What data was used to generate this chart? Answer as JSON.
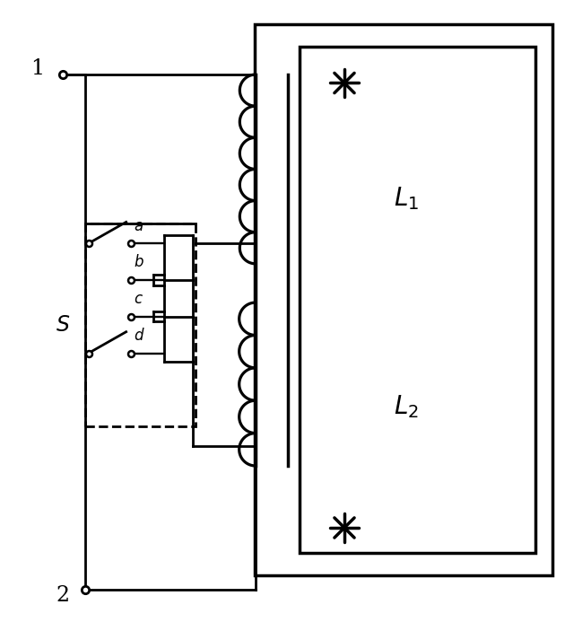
{
  "fig_width": 6.3,
  "fig_height": 6.93,
  "dpi": 100,
  "bg_color": "#ffffff",
  "lc": "#000000",
  "lw": 2.0,
  "L1_label": "$L_1$",
  "L2_label": "$L_2$",
  "S_label": "$S$",
  "node1_label": "1",
  "node2_label": "2",
  "tap_labels": [
    "a",
    "b",
    "c",
    "d"
  ]
}
